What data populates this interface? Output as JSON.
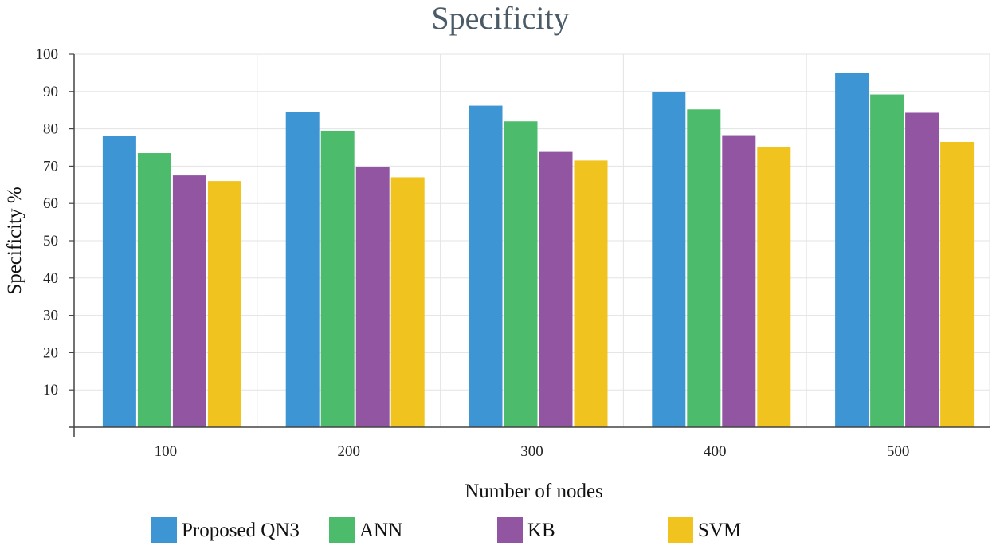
{
  "chart_data": {
    "type": "bar",
    "title": "Specificity",
    "xlabel": "Number of nodes",
    "ylabel": "Specificity %",
    "categories": [
      "100",
      "200",
      "300",
      "400",
      "500"
    ],
    "y_ticks": [
      "10",
      "20",
      "30",
      "40",
      "50",
      "60",
      "70",
      "80",
      "90",
      "100"
    ],
    "ylim": [
      0,
      100
    ],
    "grid": true,
    "legend_position": "bottom",
    "series": [
      {
        "name": "Proposed QN3",
        "color": "#3d95d4",
        "values": [
          78,
          84.5,
          86.2,
          89.8,
          95
        ]
      },
      {
        "name": "ANN",
        "color": "#4dbb6c",
        "values": [
          73.5,
          79.5,
          82,
          85.2,
          89.2
        ]
      },
      {
        "name": "KB",
        "color": "#9155a2",
        "values": [
          67.5,
          69.8,
          73.8,
          78.3,
          84.3
        ]
      },
      {
        "name": "SVM",
        "color": "#f0c31e",
        "values": [
          66,
          67,
          71.5,
          75,
          76.5
        ]
      }
    ]
  }
}
